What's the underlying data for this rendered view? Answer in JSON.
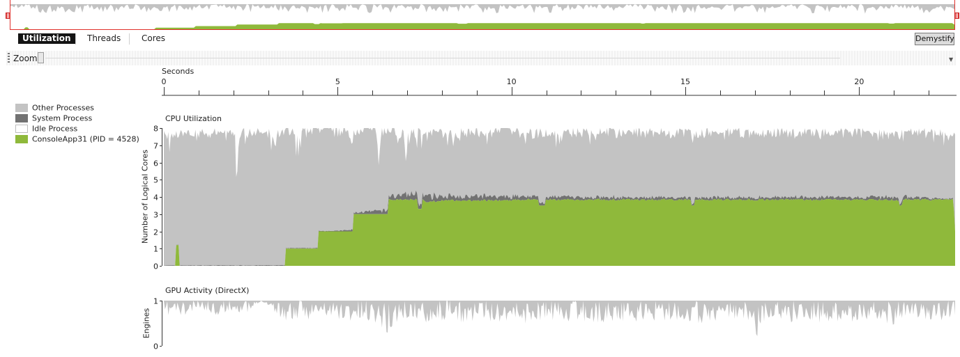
{
  "colors": {
    "other": "#c3c3c3",
    "system": "#727272",
    "idle": "#ffffff",
    "app": "#8fb93b",
    "overview_border": "#e0302b"
  },
  "tabs": [
    {
      "label": "Utilization",
      "active": true
    },
    {
      "label": "Threads",
      "active": false
    },
    {
      "label": "Cores",
      "active": false
    }
  ],
  "demystify_label": "Demystify",
  "zoom_label": "Zoom",
  "ruler": {
    "label": "Seconds",
    "max_seconds": 22.8,
    "major_ticks": [
      0,
      5,
      10,
      15,
      20
    ]
  },
  "legend": [
    {
      "label": "Other Processes",
      "color": "#c3c3c3"
    },
    {
      "label": "System Process",
      "color": "#727272"
    },
    {
      "label": "Idle Process",
      "color": "#ffffff"
    },
    {
      "label": "ConsoleApp31 (PID = 4528)",
      "color": "#8fb93b"
    }
  ],
  "chart_data": [
    {
      "type": "area",
      "title": "CPU Utilization",
      "xlabel": "Seconds",
      "ylabel": "Number of Logical Cores",
      "xlim": [
        0,
        22.8
      ],
      "ylim": [
        0,
        8
      ],
      "yticks": [
        0,
        1,
        2,
        3,
        4,
        5,
        6,
        7,
        8
      ],
      "series": [
        {
          "name": "ConsoleApp31 (PID = 4528)",
          "x": [
            0,
            0.3,
            0.35,
            0.45,
            0.5,
            3.45,
            3.5,
            4.4,
            4.45,
            5.4,
            5.45,
            6.4,
            6.45,
            7.2,
            7.3,
            7.45,
            7.5,
            8.0,
            9.0,
            10.0,
            10.7,
            10.8,
            11.0,
            12.0,
            13.0,
            14.0,
            15.0,
            15.2,
            15.3,
            16.0,
            17.0,
            18.0,
            19.0,
            20.0,
            21.0,
            21.2,
            21.3,
            22.0,
            22.5,
            22.75,
            22.8
          ],
          "values": [
            0,
            0,
            1.2,
            0,
            0,
            0,
            1,
            1,
            2,
            2,
            3,
            3,
            3.9,
            3.9,
            3.3,
            3.9,
            3.8,
            3.85,
            3.85,
            3.9,
            3.9,
            3.5,
            3.9,
            3.9,
            3.9,
            3.9,
            3.9,
            3.6,
            3.9,
            3.9,
            3.9,
            3.9,
            3.9,
            3.9,
            3.85,
            3.6,
            3.9,
            3.9,
            3.9,
            3.2,
            2.0
          ]
        },
        {
          "name": "System Process",
          "x": [
            0,
            5,
            7.3,
            10.8,
            15.2,
            21.2,
            22.8
          ],
          "values": [
            0.03,
            0.04,
            0.4,
            0.2,
            0.15,
            0.2,
            0.05
          ]
        },
        {
          "name": "Other Processes",
          "x": [
            0,
            0.15,
            0.35,
            0.45,
            0.6,
            0.8,
            0.85,
            0.9,
            1.0,
            1.5,
            2.0,
            2.1,
            2.2,
            2.5,
            3.0,
            3.3,
            3.45,
            3.6,
            3.9,
            4.0,
            4.4,
            4.5,
            4.7,
            5.0,
            5.5,
            6.0,
            6.2,
            6.4,
            6.8,
            7.3,
            7.6,
            8.0,
            8.4,
            8.8,
            9.2,
            9.6,
            10.0,
            10.4,
            10.8,
            11.2,
            11.6,
            12.0,
            12.4,
            12.8,
            13.2,
            13.6,
            14.0,
            14.4,
            14.8,
            15.2,
            15.6,
            16.0,
            16.4,
            16.8,
            17.2,
            17.6,
            18.0,
            18.4,
            18.8,
            19.2,
            19.6,
            20.0,
            20.4,
            20.8,
            21.2,
            21.6,
            22.0,
            22.4,
            22.8
          ],
          "values": [
            7.8,
            6.5,
            7.5,
            5.0,
            7.8,
            7.8,
            6.5,
            7.6,
            7.7,
            7.6,
            7.7,
            4.0,
            7.6,
            7.3,
            7.6,
            6.0,
            7.5,
            7.7,
            4.0,
            7.6,
            7.7,
            5.5,
            7.7,
            7.8,
            4.2,
            7.5,
            3.0,
            7.6,
            2.5,
            2.8,
            4.0,
            4.2,
            2.8,
            4.1,
            3.5,
            4.2,
            4.6,
            3.6,
            4.2,
            3.3,
            4.0,
            4.4,
            3.2,
            4.3,
            3.6,
            4.2,
            4.0,
            3.8,
            4.1,
            4.0,
            4.2,
            3.7,
            4.2,
            4.0,
            3.6,
            4.2,
            4.0,
            3.9,
            4.1,
            3.6,
            4.0,
            4.1,
            3.7,
            4.0,
            3.7,
            4.0,
            3.9,
            3.6,
            3.2
          ]
        },
        {
          "name": "Idle Process",
          "x": [
            0,
            22.8
          ],
          "values": [
            8,
            8
          ]
        }
      ]
    },
    {
      "type": "area",
      "title": "GPU Activity (DirectX)",
      "xlabel": "Seconds",
      "ylabel": "Engines",
      "xlim": [
        0,
        22.8
      ],
      "ylim": [
        0,
        1
      ],
      "yticks": [
        0,
        1
      ],
      "series": [
        {
          "name": "Other Processes",
          "x": [
            0,
            0.3,
            0.6,
            1.0,
            1.5,
            2.0,
            2.5,
            2.8,
            3.0,
            3.5,
            4.0,
            4.5,
            5.0,
            5.5,
            6.0,
            6.4,
            6.5,
            6.6,
            7.0,
            7.5,
            8.0,
            8.5,
            9.0,
            9.5,
            10.0,
            10.5,
            11.0,
            11.5,
            12.0,
            12.5,
            13.0,
            13.5,
            14.0,
            14.5,
            15.0,
            15.5,
            16.0,
            16.5,
            17.0,
            17.1,
            17.2,
            17.5,
            18.0,
            18.5,
            19.0,
            19.5,
            20.0,
            20.5,
            21.0,
            21.5,
            22.0,
            22.5,
            22.8
          ],
          "values": [
            0.6,
            0.75,
            0.6,
            0.85,
            0.7,
            0.8,
            0.7,
            1.0,
            0.9,
            0.55,
            0.6,
            0.65,
            0.6,
            0.55,
            0.6,
            0.4,
            0.05,
            0.5,
            0.6,
            0.55,
            0.6,
            0.5,
            0.6,
            0.55,
            0.6,
            0.5,
            0.6,
            0.55,
            0.6,
            0.5,
            0.6,
            0.55,
            0.6,
            0.55,
            0.6,
            0.5,
            0.6,
            0.55,
            0.6,
            0.05,
            0.5,
            0.6,
            0.55,
            0.6,
            0.5,
            0.6,
            0.55,
            0.6,
            0.5,
            0.6,
            0.55,
            0.6,
            0.6
          ]
        }
      ]
    }
  ]
}
